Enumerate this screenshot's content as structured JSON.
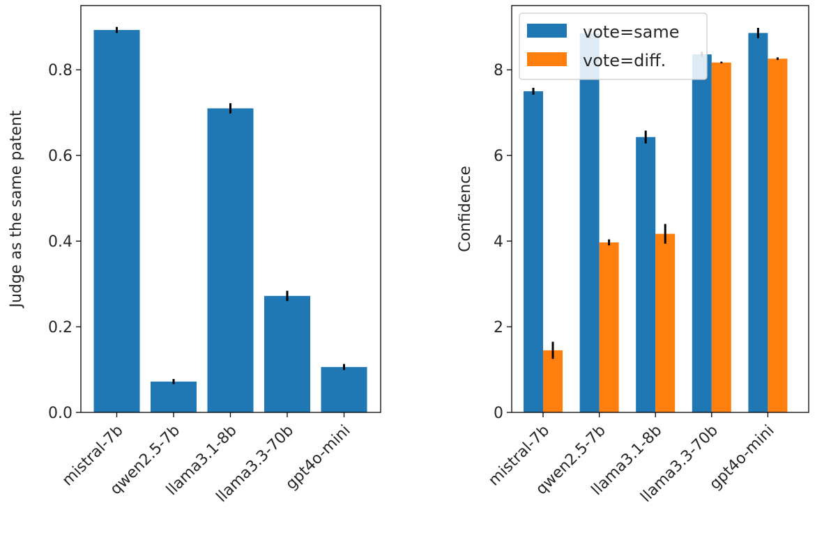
{
  "chart_data": [
    {
      "type": "bar",
      "title": "",
      "xlabel": "",
      "ylabel": "Judge as the same patent",
      "categories": [
        "mistral-7b",
        "qwen2.5-7b",
        "llama3.1-8b",
        "llama3.3-70b",
        "gpt4o-mini"
      ],
      "series": [
        {
          "name": "",
          "color": "#1f77b4",
          "values": [
            0.893,
            0.072,
            0.71,
            0.272,
            0.106
          ],
          "errors": [
            0.007,
            0.006,
            0.012,
            0.012,
            0.007
          ]
        }
      ],
      "ylim": [
        0,
        0.95
      ],
      "yticks": [
        0.0,
        0.2,
        0.4,
        0.6,
        0.8
      ],
      "ytick_labels": [
        "0.0",
        "0.2",
        "0.4",
        "0.6",
        "0.8"
      ],
      "grid": false
    },
    {
      "type": "bar",
      "title": "",
      "xlabel": "",
      "ylabel": "Confidence",
      "categories": [
        "mistral-7b",
        "qwen2.5-7b",
        "llama3.1-8b",
        "llama3.3-70b",
        "gpt4o-mini"
      ],
      "series": [
        {
          "name": "vote=same",
          "color": "#1f77b4",
          "values": [
            7.5,
            8.85,
            6.43,
            8.36,
            8.86
          ],
          "errors": [
            0.08,
            0.12,
            0.15,
            0.06,
            0.12
          ]
        },
        {
          "name": "vote=diff.",
          "color": "#ff7f0e",
          "values": [
            1.45,
            3.97,
            4.17,
            8.17,
            8.26
          ],
          "errors": [
            0.2,
            0.07,
            0.23,
            0.02,
            0.03
          ]
        }
      ],
      "ylim": [
        0,
        9.5
      ],
      "yticks": [
        0,
        2,
        4,
        6,
        8
      ],
      "ytick_labels": [
        "0",
        "2",
        "4",
        "6",
        "8"
      ],
      "legend": "top-left",
      "grid": false
    }
  ]
}
